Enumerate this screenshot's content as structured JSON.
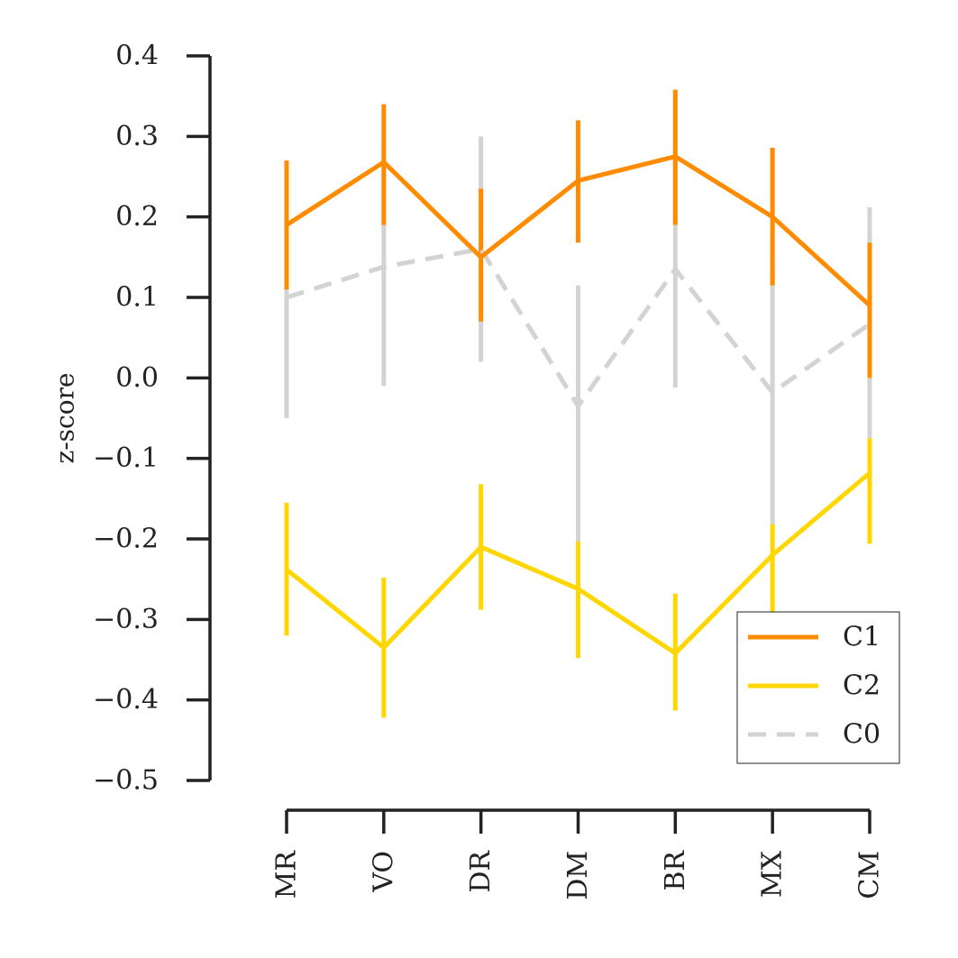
{
  "chart_data": {
    "type": "line",
    "title": "",
    "xlabel": "",
    "ylabel": "z-score",
    "ylim": [
      -0.5,
      0.4
    ],
    "yticks": [
      0.4,
      0.3,
      0.2,
      0.1,
      0.0,
      -0.1,
      -0.2,
      -0.3,
      -0.4,
      -0.5
    ],
    "ytick_labels": [
      "0.4",
      "0.3",
      "0.2",
      "0.1",
      "0.0",
      "−0.1",
      "−0.2",
      "−0.3",
      "−0.4",
      "−0.5"
    ],
    "categories": [
      "MR",
      "VO",
      "DR",
      "DM",
      "BR",
      "MX",
      "CM"
    ],
    "grid": false,
    "legend_position": "bottom-right",
    "series": [
      {
        "name": "C0",
        "color": "#d3d3d3",
        "style": "dashed",
        "values": [
          0.1,
          0.138,
          0.16,
          -0.035,
          0.135,
          -0.018,
          0.067
        ],
        "err_low": [
          -0.05,
          -0.01,
          0.02,
          -0.205,
          -0.012,
          -0.185,
          -0.075
        ],
        "err_high": [
          0.25,
          0.285,
          0.3,
          0.115,
          0.285,
          0.145,
          0.212
        ]
      },
      {
        "name": "C1",
        "color": "#ff8c00",
        "style": "solid",
        "values": [
          0.19,
          0.268,
          0.15,
          0.245,
          0.275,
          0.2,
          0.09
        ],
        "err_low": [
          0.11,
          0.19,
          0.07,
          0.168,
          0.19,
          0.115,
          0.0
        ],
        "err_high": [
          0.27,
          0.34,
          0.235,
          0.32,
          0.358,
          0.286,
          0.168
        ]
      },
      {
        "name": "C2",
        "color": "#ffd700",
        "style": "solid",
        "values": [
          -0.238,
          -0.335,
          -0.21,
          -0.262,
          -0.342,
          -0.22,
          -0.118
        ],
        "err_low": [
          -0.32,
          -0.422,
          -0.288,
          -0.348,
          -0.413,
          -0.29,
          -0.206
        ],
        "err_high": [
          -0.155,
          -0.248,
          -0.132,
          -0.203,
          -0.268,
          -0.182,
          -0.075
        ]
      }
    ],
    "legend_order": [
      "C1",
      "C2",
      "C0"
    ]
  }
}
